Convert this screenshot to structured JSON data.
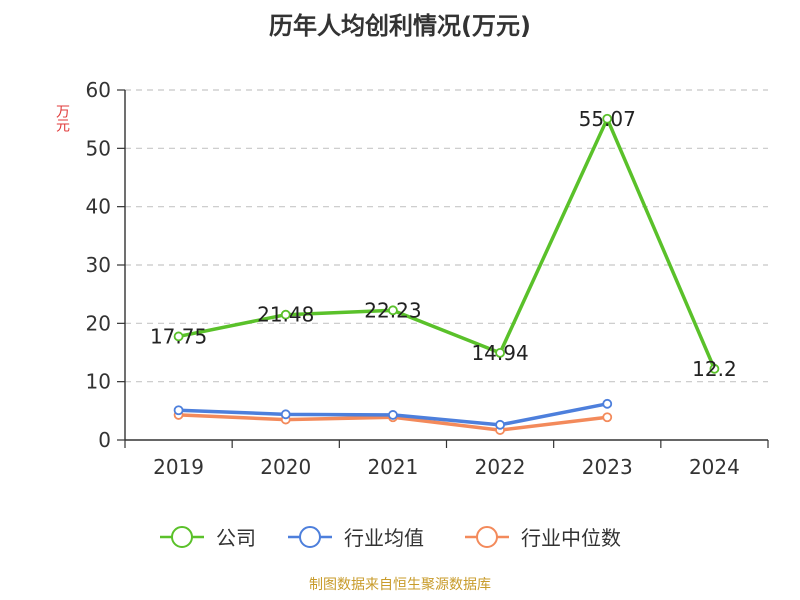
{
  "chart_data": {
    "type": "line",
    "title": "历年人均创利情况(万元)",
    "ylabel": "万元",
    "xlabel": "",
    "categories": [
      "2019",
      "2020",
      "2021",
      "2022",
      "2023",
      "2024"
    ],
    "ylim": [
      0,
      60
    ],
    "yticks": [
      0,
      10,
      20,
      30,
      40,
      50,
      60
    ],
    "grid": "horizontal dashed",
    "legend_position": "bottom",
    "series": [
      {
        "name": "公司",
        "color": "#5ac12a",
        "values": [
          17.75,
          21.48,
          22.23,
          14.94,
          55.07,
          12.2
        ],
        "labels": [
          "17.75",
          "21.48",
          "22.23",
          "14.94",
          "55.07",
          "12.2"
        ]
      },
      {
        "name": "行业均值",
        "color": "#4d7fdc",
        "values": [
          5.1,
          4.4,
          4.3,
          2.6,
          6.2,
          null
        ]
      },
      {
        "name": "行业中位数",
        "color": "#f38a5b",
        "values": [
          4.3,
          3.5,
          3.9,
          1.7,
          3.9,
          null
        ]
      }
    ]
  },
  "source": "制图数据来自恒生聚源数据库"
}
